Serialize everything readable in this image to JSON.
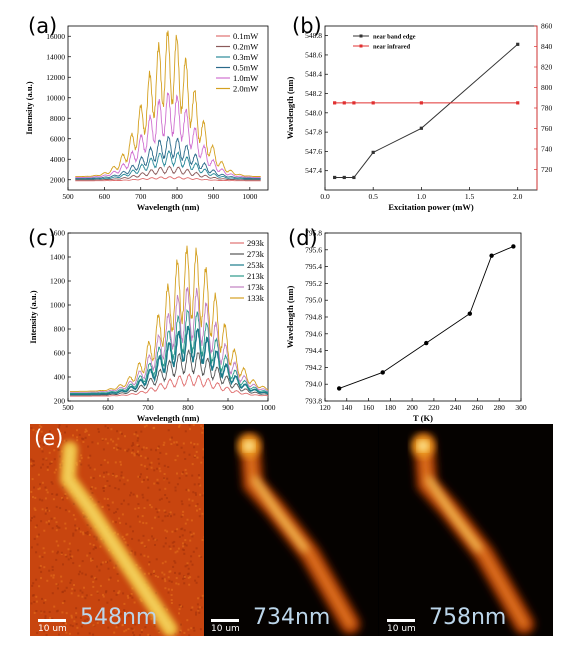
{
  "panel_labels": {
    "a": "(a)",
    "b": "(b)",
    "c": "(c)",
    "d": "(d)",
    "e": "(e)"
  },
  "colors": {
    "line_black": "#333333",
    "line_red": "#e03030"
  },
  "chart_data": [
    {
      "id": "a",
      "type": "line",
      "xlabel": "Wavelength (nm)",
      "ylabel": "Intensity (a.u.)",
      "xlim": [
        500,
        1050
      ],
      "ylim": [
        1000,
        17000
      ],
      "xticks": [
        500,
        600,
        700,
        800,
        900,
        1000
      ],
      "yticks": [
        2000,
        4000,
        6000,
        8000,
        10000,
        12000,
        14000,
        16000
      ],
      "series": [
        {
          "name": "0.1mW",
          "color": "#e07070",
          "peak": 2300
        },
        {
          "name": "0.2mW",
          "color": "#8a5a5a",
          "peak": 3300
        },
        {
          "name": "0.3mW",
          "color": "#2a8a9a",
          "peak": 4800
        },
        {
          "name": "0.5mW",
          "color": "#2a6a8a",
          "peak": 6200
        },
        {
          "name": "1.0mW",
          "color": "#d070d0",
          "peak": 10500
        },
        {
          "name": "2.0mW",
          "color": "#d4a020",
          "peak": 16500
        }
      ]
    },
    {
      "id": "b",
      "type": "line",
      "xlabel": "Excitation power (mW)",
      "ylabel": "Wavelength (nm)",
      "ylabel_right": "",
      "xlim": [
        0,
        2.2
      ],
      "ylim": [
        547.2,
        548.9
      ],
      "ylim_right": [
        700,
        860
      ],
      "xticks": [
        0.0,
        0.5,
        1.0,
        1.5,
        2.0
      ],
      "xticklabels": [
        "0.0",
        "0.5",
        "1.0",
        "1.5",
        "2.0"
      ],
      "yticks": [
        547.4,
        547.6,
        547.8,
        548.0,
        548.2,
        548.4,
        548.6,
        548.8
      ],
      "yticklabels": [
        "547.4",
        "547.6",
        "547.8",
        "548.0",
        "548.2",
        "548.4",
        "548.6",
        "548.8"
      ],
      "yticks_right": [
        720,
        740,
        760,
        780,
        800,
        820,
        840,
        860
      ],
      "series": [
        {
          "name": "near band edge",
          "color": "#333333",
          "axis": "left",
          "x": [
            0.1,
            0.2,
            0.3,
            0.5,
            1.0,
            2.0
          ],
          "y": [
            547.33,
            547.33,
            547.33,
            547.59,
            547.84,
            548.71
          ]
        },
        {
          "name": "near infrared",
          "color": "#e03030",
          "axis": "right",
          "x": [
            0.1,
            0.2,
            0.3,
            0.5,
            1.0,
            2.0
          ],
          "y": [
            785,
            785,
            785,
            785,
            785,
            785
          ]
        }
      ]
    },
    {
      "id": "c",
      "type": "line",
      "xlabel": "Wavelength (nm)",
      "ylabel": "Intensity (a.u.)",
      "xlim": [
        500,
        1000
      ],
      "ylim": [
        200,
        1600
      ],
      "xticks": [
        500,
        600,
        700,
        800,
        900,
        1000
      ],
      "yticks": [
        200,
        400,
        600,
        800,
        1000,
        1200,
        1400,
        1600
      ],
      "series": [
        {
          "name": "293k",
          "color": "#e07070",
          "peak": 420
        },
        {
          "name": "273k",
          "color": "#555555",
          "peak": 620
        },
        {
          "name": "253k",
          "color": "#1a7a8a",
          "peak": 820
        },
        {
          "name": "213k",
          "color": "#2a9a8a",
          "peak": 960
        },
        {
          "name": "173k",
          "color": "#c080c0",
          "peak": 1150
        },
        {
          "name": "133k",
          "color": "#d4a020",
          "peak": 1480
        }
      ]
    },
    {
      "id": "d",
      "type": "line",
      "xlabel": "T (K)",
      "ylabel": "Wavelength (nm)",
      "xlim": [
        120,
        300
      ],
      "ylim": [
        793.8,
        795.8
      ],
      "xticks": [
        120,
        140,
        160,
        180,
        200,
        220,
        240,
        260,
        280,
        300
      ],
      "yticks": [
        793.8,
        794.0,
        794.2,
        794.4,
        794.6,
        794.8,
        795.0,
        795.2,
        795.4,
        795.6,
        795.8
      ],
      "yticklabels": [
        "793.8",
        "794.0",
        "794.2",
        "794.4",
        "794.6",
        "794.8",
        "795.0",
        "795.2",
        "795.4",
        "795.6",
        "795.8"
      ],
      "series": [
        {
          "color": "#000000",
          "x": [
            133,
            173,
            213,
            253,
            273,
            293
          ],
          "y": [
            793.95,
            794.14,
            794.49,
            794.84,
            795.53,
            795.64
          ]
        }
      ]
    }
  ],
  "images": [
    {
      "label": "548nm",
      "scale": "10 um",
      "palette": "noisy"
    },
    {
      "label": "734nm",
      "scale": "10 um",
      "palette": "smooth"
    },
    {
      "label": "758nm",
      "scale": "10 um",
      "palette": "smooth"
    }
  ]
}
